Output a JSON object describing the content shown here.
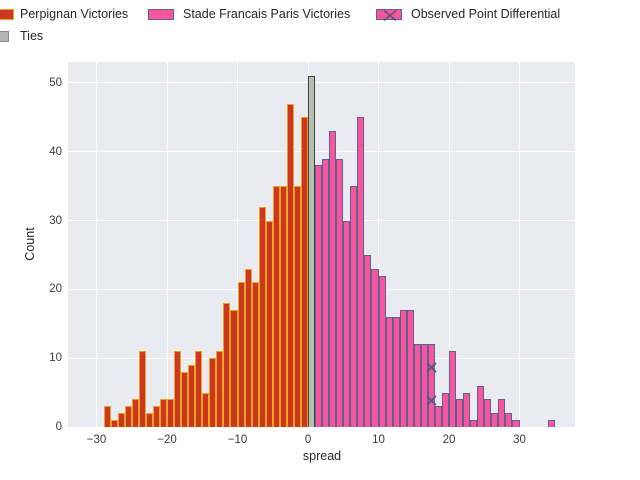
{
  "legend": {
    "items": [
      {
        "label": "Perpignan Victories",
        "fill": "#cd3620",
        "edge": "#e7a61d",
        "type": "bar"
      },
      {
        "label": "Stade Francais Paris Victories",
        "fill": "#f7569c",
        "edge": "#5d6293",
        "type": "bar"
      },
      {
        "label": "Observed Point Differential",
        "fill": "#f7569c",
        "edge": "#5d6293",
        "type": "bar-with-x"
      },
      {
        "label": "Ties",
        "fill": "#b5b5b5",
        "edge": "#787878",
        "type": "bar"
      }
    ]
  },
  "axes": {
    "xlabel": "spread",
    "ylabel": "Count",
    "x_ticks": [
      {
        "v": -30,
        "label": "−30"
      },
      {
        "v": -20,
        "label": "−20"
      },
      {
        "v": -10,
        "label": "−10"
      },
      {
        "v": 0,
        "label": "0"
      },
      {
        "v": 10,
        "label": "10"
      },
      {
        "v": 20,
        "label": "20"
      },
      {
        "v": 30,
        "label": "30"
      }
    ],
    "y_ticks": [
      {
        "v": 0,
        "label": "0"
      },
      {
        "v": 10,
        "label": "10"
      },
      {
        "v": 20,
        "label": "20"
      },
      {
        "v": 30,
        "label": "30"
      },
      {
        "v": 40,
        "label": "40"
      },
      {
        "v": 50,
        "label": "50"
      }
    ]
  },
  "chart_data": {
    "type": "bar",
    "subtype": "histogram",
    "title": "",
    "xlabel": "spread",
    "ylabel": "Count",
    "xlim": [
      -34.05,
      37.87
    ],
    "ylim": [
      0,
      53.04
    ],
    "bin_width": 1,
    "grid": true,
    "legend_position": "upper-left-outside",
    "series": [
      {
        "name": "Perpignan Victories",
        "fill": "#cd3620",
        "edge": "#e7a61d",
        "bins": [
          [
            -29,
            3
          ],
          [
            -28,
            1
          ],
          [
            -27,
            2
          ],
          [
            -26,
            3
          ],
          [
            -25,
            4
          ],
          [
            -24,
            11
          ],
          [
            -23,
            2
          ],
          [
            -22,
            3
          ],
          [
            -21,
            4
          ],
          [
            -20,
            4
          ],
          [
            -19,
            11
          ],
          [
            -18,
            8
          ],
          [
            -17,
            9
          ],
          [
            -16,
            11
          ],
          [
            -15,
            5
          ],
          [
            -14,
            10
          ],
          [
            -13,
            11
          ],
          [
            -12,
            18
          ],
          [
            -11,
            17
          ],
          [
            -10,
            21
          ],
          [
            -9,
            23
          ],
          [
            -8,
            21
          ],
          [
            -7,
            32
          ],
          [
            -6,
            30
          ],
          [
            -5,
            35
          ],
          [
            -4,
            35
          ],
          [
            -3,
            47
          ],
          [
            -2,
            35
          ],
          [
            -1,
            45
          ]
        ]
      },
      {
        "name": "Ties",
        "fill": "#b9beb2",
        "edge": "#414540",
        "bins": [
          [
            0,
            51
          ]
        ]
      },
      {
        "name": "Stade Francais Paris Victories",
        "fill": "#f7569c",
        "edge": "#5d6293",
        "bins": [
          [
            1,
            38
          ],
          [
            2,
            39
          ],
          [
            3,
            43
          ],
          [
            4,
            39
          ],
          [
            5,
            30
          ],
          [
            6,
            35
          ],
          [
            7,
            45
          ],
          [
            8,
            25
          ],
          [
            9,
            23
          ],
          [
            10,
            22
          ],
          [
            11,
            16
          ],
          [
            12,
            16
          ],
          [
            13,
            17
          ],
          [
            14,
            17
          ],
          [
            15,
            12
          ],
          [
            16,
            12
          ],
          [
            17,
            12
          ],
          [
            18,
            3
          ],
          [
            19,
            5
          ],
          [
            20,
            11
          ],
          [
            21,
            4
          ],
          [
            22,
            5
          ],
          [
            23,
            1
          ],
          [
            24,
            6
          ],
          [
            25,
            4
          ],
          [
            26,
            2
          ],
          [
            27,
            4
          ],
          [
            28,
            2
          ],
          [
            29,
            1
          ],
          [
            34,
            1
          ]
        ]
      },
      {
        "name": "Observed Point Differential",
        "marker": "x",
        "color": "#4d5480",
        "points": [
          [
            17.5,
            9
          ],
          [
            17.5,
            4.2
          ]
        ]
      }
    ]
  }
}
